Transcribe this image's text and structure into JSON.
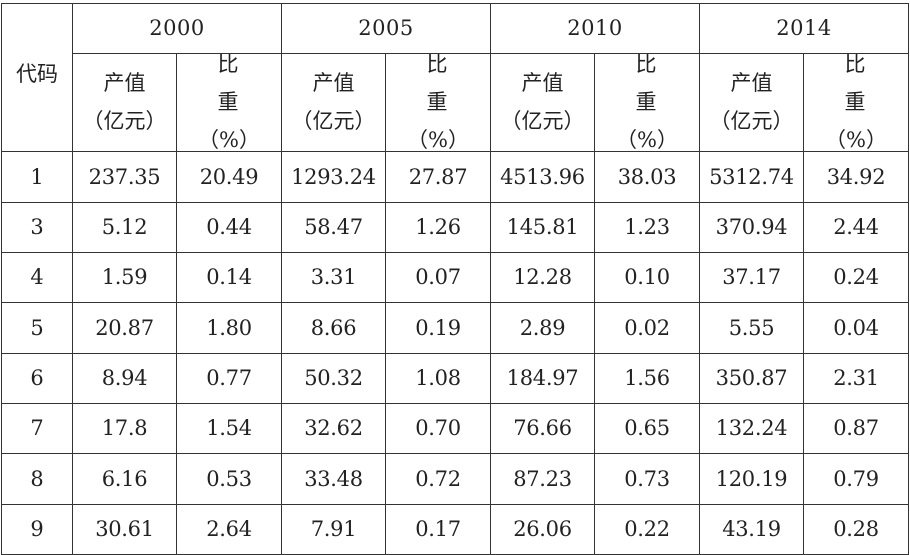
{
  "table": {
    "code_header": "代码",
    "years": [
      "2000",
      "2005",
      "2010",
      "2014"
    ],
    "value_label_line1": "产值",
    "value_label_line2": "（亿元）",
    "share_label_char1": "比",
    "share_label_char2": "重",
    "share_label_line2": "（%）",
    "rows": [
      {
        "code": "1",
        "cells": [
          "237.35",
          "20.49",
          "1293.24",
          "27.87",
          "4513.96",
          "38.03",
          "5312.74",
          "34.92"
        ]
      },
      {
        "code": "3",
        "cells": [
          "5.12",
          "0.44",
          "58.47",
          "1.26",
          "145.81",
          "1.23",
          "370.94",
          "2.44"
        ]
      },
      {
        "code": "4",
        "cells": [
          "1.59",
          "0.14",
          "3.31",
          "0.07",
          "12.28",
          "0.10",
          "37.17",
          "0.24"
        ]
      },
      {
        "code": "5",
        "cells": [
          "20.87",
          "1.80",
          "8.66",
          "0.19",
          "2.89",
          "0.02",
          "5.55",
          "0.04"
        ]
      },
      {
        "code": "6",
        "cells": [
          "8.94",
          "0.77",
          "50.32",
          "1.08",
          "184.97",
          "1.56",
          "350.87",
          "2.31"
        ]
      },
      {
        "code": "7",
        "cells": [
          "17.8",
          "1.54",
          "32.62",
          "0.70",
          "76.66",
          "0.65",
          "132.24",
          "0.87"
        ]
      },
      {
        "code": "8",
        "cells": [
          "6.16",
          "0.53",
          "33.48",
          "0.72",
          "87.23",
          "0.73",
          "120.19",
          "0.79"
        ]
      },
      {
        "code": "9",
        "cells": [
          "30.61",
          "2.64",
          "7.91",
          "0.17",
          "26.06",
          "0.22",
          "43.19",
          "0.28"
        ]
      }
    ]
  }
}
